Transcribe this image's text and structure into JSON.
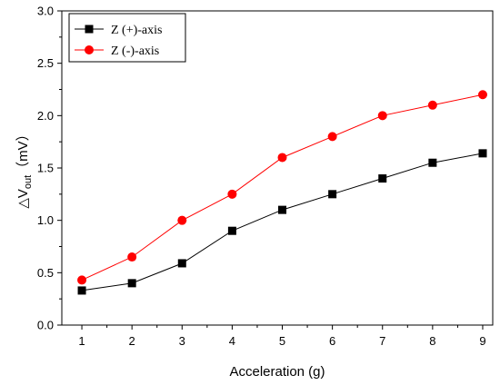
{
  "chart_data": {
    "type": "line",
    "xlabel": "Acceleration (g)",
    "ylabel": {
      "main": "△V",
      "sub": "out",
      "unit": "（mV）"
    },
    "x": [
      1,
      2,
      3,
      4,
      5,
      6,
      7,
      8,
      9
    ],
    "xlim": [
      0.6,
      9.2
    ],
    "ylim": [
      0,
      3.0
    ],
    "xticks": [
      "1",
      "2",
      "3",
      "4",
      "5",
      "6",
      "7",
      "8",
      "9"
    ],
    "yticks": [
      "0.0",
      "0.5",
      "1.0",
      "1.5",
      "2.0",
      "2.5",
      "3.0"
    ],
    "grid": false,
    "legend_position": "top-left",
    "series": [
      {
        "name": "Z (+)-axis",
        "color": "#000000",
        "marker": "square",
        "values": [
          0.33,
          0.4,
          0.59,
          0.9,
          1.1,
          1.25,
          1.4,
          1.55,
          1.64
        ]
      },
      {
        "name": "Z (-)-axis",
        "color": "#ff0000",
        "marker": "circle",
        "values": [
          0.43,
          0.65,
          1.0,
          1.25,
          1.6,
          1.8,
          2.0,
          2.1,
          2.2
        ]
      }
    ]
  }
}
